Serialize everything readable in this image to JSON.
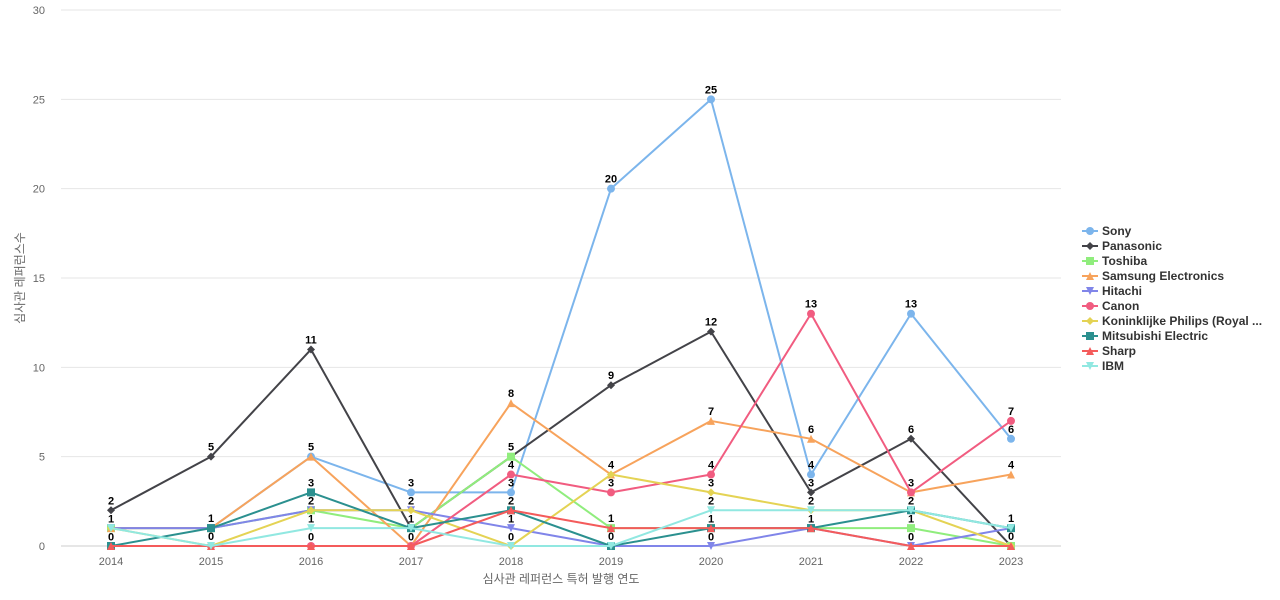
{
  "chart_data": {
    "type": "line",
    "title": "",
    "xlabel": "심사관 레퍼런스 특허 발행 연도",
    "ylabel": "심사관 레퍼런스수",
    "x": [
      "2014",
      "2015",
      "2016",
      "2017",
      "2018",
      "2019",
      "2020",
      "2021",
      "2022",
      "2023"
    ],
    "ylim": [
      0,
      30
    ],
    "yticks": [
      0,
      5,
      10,
      15,
      20,
      25,
      30
    ],
    "grid": true,
    "legend_position": "right",
    "series": [
      {
        "name": "Sony",
        "values": [
          1,
          1,
          5,
          3,
          3,
          20,
          25,
          4,
          13,
          6
        ],
        "color": "#7cb5ec",
        "marker": "circle"
      },
      {
        "name": "Panasonic",
        "values": [
          2,
          5,
          11,
          1,
          5,
          9,
          12,
          3,
          6,
          0
        ],
        "color": "#434348",
        "marker": "diamond"
      },
      {
        "name": "Toshiba",
        "values": [
          1,
          1,
          2,
          1,
          5,
          1,
          1,
          1,
          1,
          0
        ],
        "color": "#90ed7d",
        "marker": "square"
      },
      {
        "name": "Samsung Electronics",
        "values": [
          1,
          1,
          5,
          0,
          8,
          4,
          7,
          6,
          3,
          4
        ],
        "color": "#f7a35c",
        "marker": "triangle"
      },
      {
        "name": "Hitachi",
        "values": [
          1,
          1,
          2,
          2,
          1,
          0,
          0,
          1,
          0,
          1
        ],
        "color": "#8085e9",
        "marker": "triangle-down"
      },
      {
        "name": "Canon",
        "values": [
          0,
          0,
          0,
          0,
          4,
          3,
          4,
          13,
          3,
          7
        ],
        "color": "#f15c80",
        "marker": "circle"
      },
      {
        "name": "Koninklijke Philips (Royal ...",
        "values": [
          1,
          0,
          2,
          2,
          0,
          4,
          3,
          2,
          2,
          0
        ],
        "color": "#e4d354",
        "marker": "diamond"
      },
      {
        "name": "Mitsubishi Electric",
        "values": [
          0,
          1,
          3,
          1,
          2,
          0,
          1,
          1,
          2,
          1
        ],
        "color": "#2b908f",
        "marker": "square"
      },
      {
        "name": "Sharp",
        "values": [
          0,
          0,
          0,
          0,
          2,
          1,
          1,
          1,
          0,
          0
        ],
        "color": "#f45b5b",
        "marker": "triangle"
      },
      {
        "name": "IBM",
        "values": [
          1,
          0,
          1,
          1,
          0,
          0,
          2,
          2,
          2,
          1
        ],
        "color": "#91e8e1",
        "marker": "triangle-down"
      }
    ],
    "data_labels": [
      {
        "x": "2014",
        "values": [
          2,
          1,
          0
        ]
      },
      {
        "x": "2015",
        "values": [
          5,
          1,
          0
        ]
      },
      {
        "x": "2016",
        "values": [
          11,
          5,
          3,
          2,
          1,
          0
        ]
      },
      {
        "x": "2017",
        "values": [
          3,
          2,
          1,
          0
        ]
      },
      {
        "x": "2018",
        "values": [
          8,
          5,
          4,
          3,
          2,
          1,
          0
        ]
      },
      {
        "x": "2019",
        "values": [
          20,
          9,
          4,
          3,
          1,
          0
        ]
      },
      {
        "x": "2020",
        "values": [
          25,
          12,
          7,
          4,
          3,
          2,
          1,
          0
        ]
      },
      {
        "x": "2021",
        "values": [
          13,
          6,
          4,
          3,
          2,
          1
        ]
      },
      {
        "x": "2022",
        "values": [
          13,
          6,
          3,
          2,
          1,
          0
        ]
      },
      {
        "x": "2023",
        "values": [
          7,
          6,
          4,
          1,
          0
        ]
      }
    ]
  }
}
